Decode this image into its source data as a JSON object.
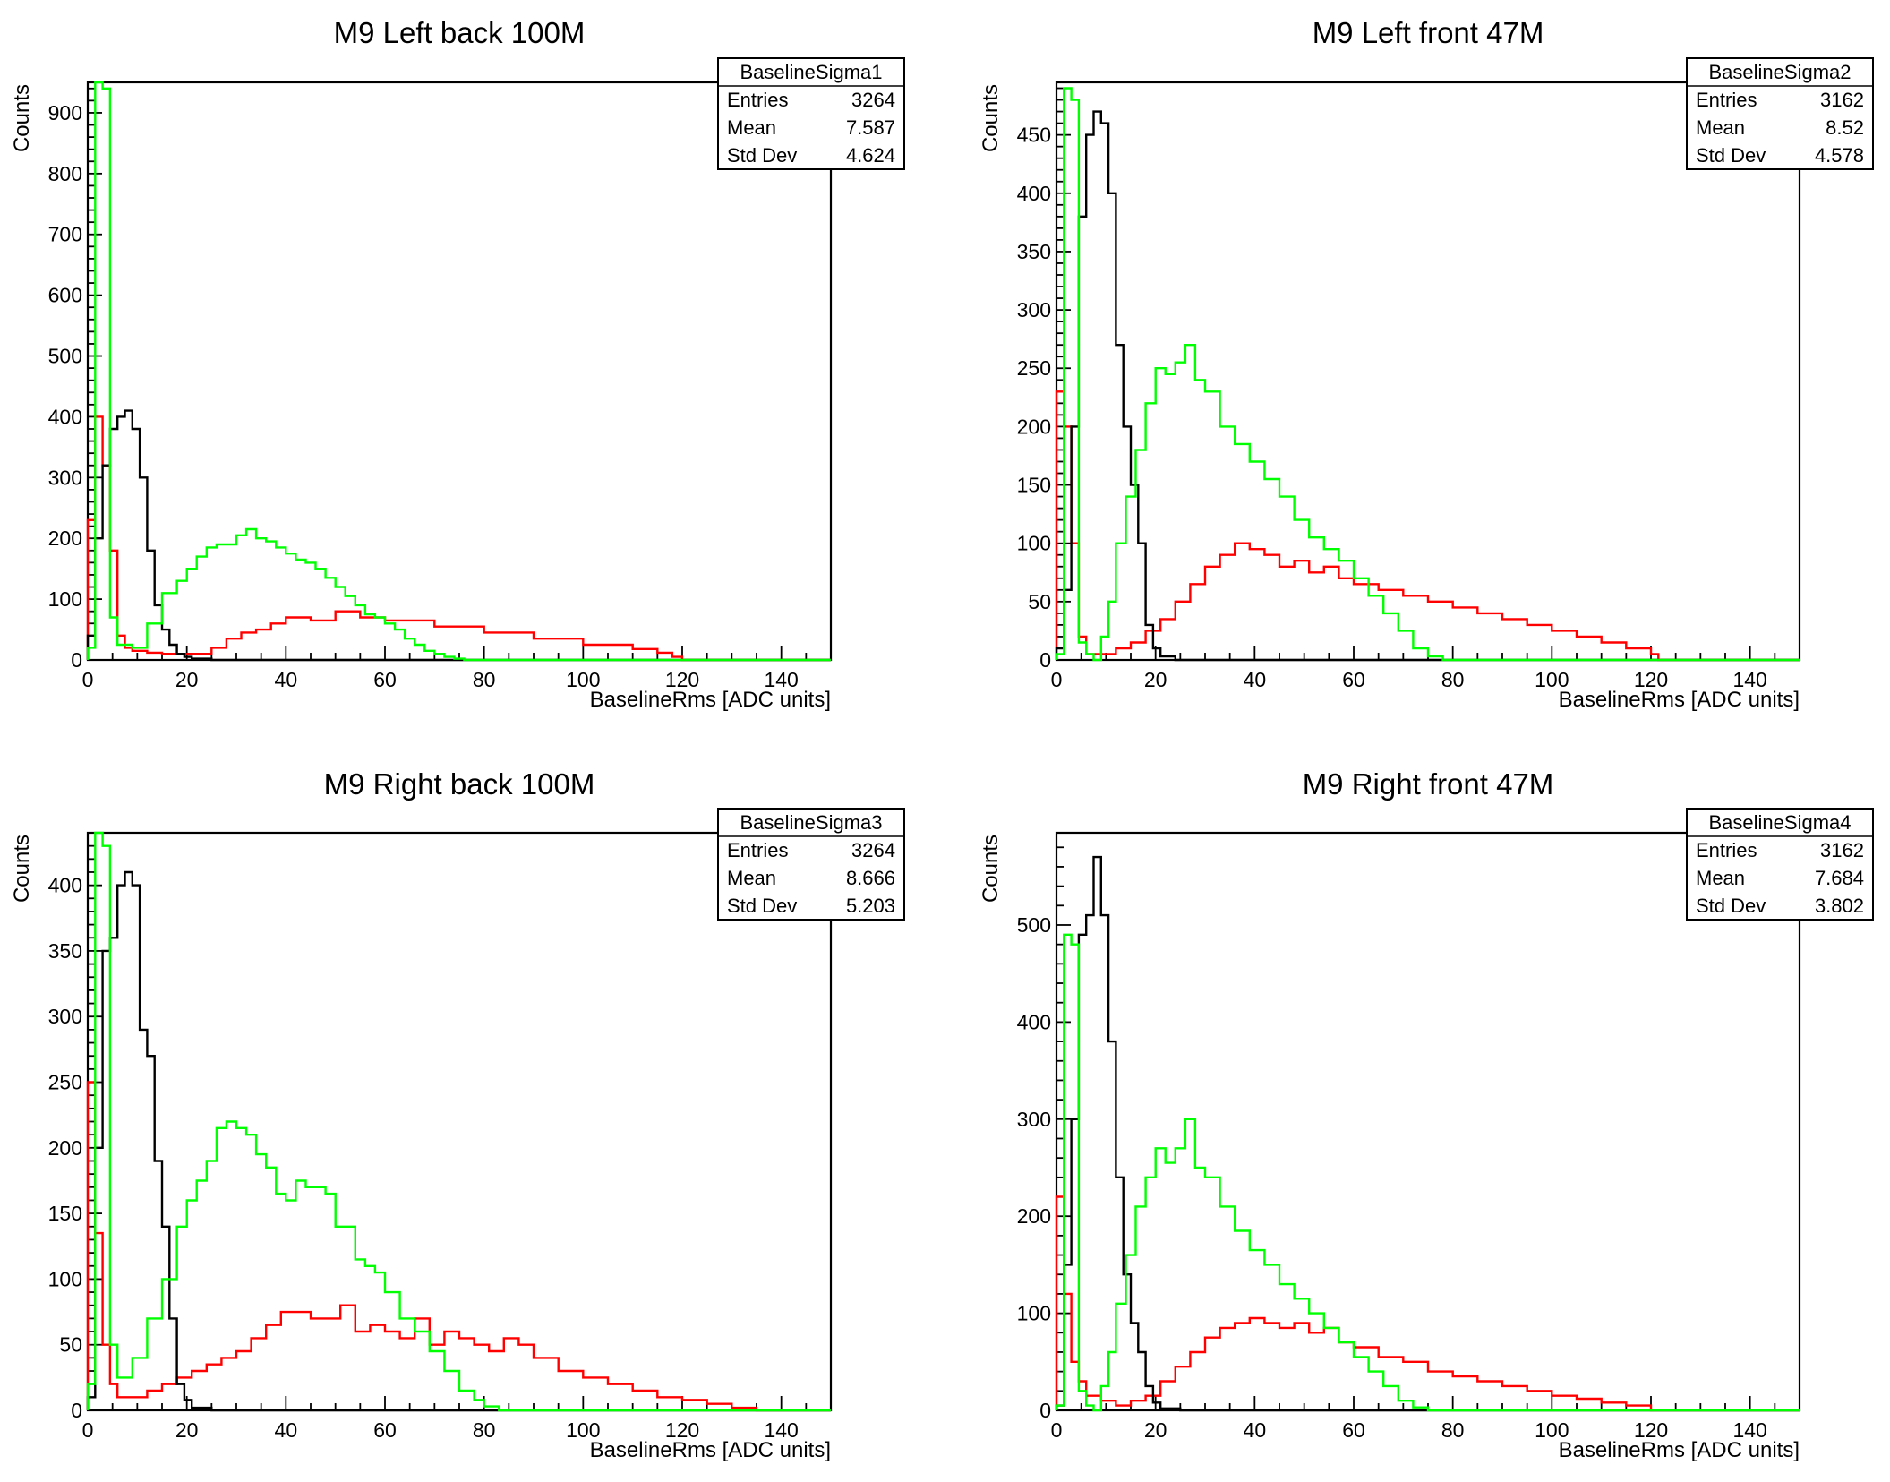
{
  "chart_data": [
    {
      "type": "histogram",
      "title": "M9 Left back 100M",
      "xlabel": "BaselineRms [ADC units]",
      "ylabel": "Counts",
      "xlim": [
        0,
        150
      ],
      "ylim": [
        0,
        950
      ],
      "xticks": [
        0,
        20,
        40,
        60,
        80,
        100,
        120,
        140
      ],
      "yticks": [
        0,
        100,
        200,
        300,
        400,
        500,
        600,
        700,
        800,
        900
      ],
      "bin_width": 1.5,
      "stats": {
        "name": "BaselineSigma1",
        "rows": [
          [
            "Entries",
            "3264"
          ],
          [
            "Mean",
            "7.587"
          ],
          [
            "Std Dev",
            "4.624"
          ]
        ]
      },
      "series": [
        {
          "color": "#ff0000",
          "x": [
            0,
            1.5,
            3,
            4.5,
            6,
            7.5,
            9,
            10.5,
            12,
            15,
            20,
            25,
            28,
            31,
            34,
            37,
            40,
            45,
            50,
            55,
            60,
            70,
            80,
            90,
            100,
            110,
            115,
            118,
            120
          ],
          "y": [
            230,
            400,
            320,
            180,
            40,
            20,
            15,
            15,
            12,
            10,
            10,
            20,
            35,
            45,
            50,
            60,
            70,
            65,
            80,
            70,
            65,
            55,
            45,
            35,
            25,
            18,
            12,
            5,
            0
          ]
        },
        {
          "color": "#000000",
          "x": [
            0,
            1.5,
            3,
            4.5,
            6,
            7.5,
            9,
            10.5,
            12,
            13.5,
            15,
            16.5,
            18,
            19.5,
            21,
            25,
            30
          ],
          "y": [
            40,
            200,
            320,
            380,
            400,
            410,
            380,
            300,
            180,
            90,
            50,
            25,
            10,
            5,
            2,
            0,
            0
          ]
        },
        {
          "color": "#00ff00",
          "x": [
            0,
            1.5,
            3,
            4.5,
            6,
            9,
            12,
            15,
            18,
            20,
            22,
            24,
            26,
            28,
            30,
            32,
            34,
            36,
            38,
            40,
            42,
            44,
            46,
            48,
            50,
            52,
            54,
            56,
            58,
            60,
            62,
            64,
            66,
            68,
            70,
            72,
            74,
            76
          ],
          "y": [
            20,
            950,
            940,
            70,
            25,
            20,
            60,
            110,
            130,
            150,
            170,
            185,
            190,
            190,
            205,
            215,
            200,
            195,
            185,
            175,
            165,
            160,
            150,
            135,
            120,
            105,
            90,
            75,
            70,
            60,
            50,
            35,
            25,
            15,
            10,
            5,
            2,
            0
          ]
        }
      ]
    },
    {
      "type": "histogram",
      "title": "M9 Left front 47M",
      "xlabel": "BaselineRms [ADC units]",
      "ylabel": "Counts",
      "xlim": [
        0,
        150
      ],
      "ylim": [
        0,
        495
      ],
      "xticks": [
        0,
        20,
        40,
        60,
        80,
        100,
        120,
        140
      ],
      "yticks": [
        0,
        50,
        100,
        150,
        200,
        250,
        300,
        350,
        400,
        450
      ],
      "bin_width": 1.5,
      "stats": {
        "name": "BaselineSigma2",
        "rows": [
          [
            "Entries",
            "3162"
          ],
          [
            "Mean",
            "8.52"
          ],
          [
            "Std Dev",
            "4.578"
          ]
        ]
      },
      "series": [
        {
          "color": "#ff0000",
          "x": [
            0,
            1.5,
            3,
            4.5,
            6,
            9,
            12,
            15,
            18,
            21,
            24,
            27,
            30,
            33,
            36,
            39,
            42,
            45,
            48,
            51,
            54,
            57,
            60,
            65,
            70,
            75,
            80,
            85,
            90,
            95,
            100,
            105,
            110,
            115,
            120
          ],
          "y": [
            230,
            200,
            100,
            20,
            5,
            5,
            10,
            15,
            25,
            35,
            50,
            65,
            80,
            90,
            100,
            95,
            90,
            80,
            85,
            75,
            80,
            70,
            65,
            60,
            55,
            50,
            45,
            40,
            35,
            30,
            25,
            20,
            15,
            10,
            5
          ]
        },
        {
          "color": "#000000",
          "x": [
            0,
            1.5,
            3,
            4.5,
            6,
            7.5,
            9,
            10.5,
            12,
            13.5,
            15,
            16.5,
            18,
            19.5,
            21,
            24
          ],
          "y": [
            10,
            60,
            200,
            380,
            450,
            470,
            460,
            400,
            270,
            200,
            150,
            100,
            30,
            10,
            3,
            0
          ]
        },
        {
          "color": "#00ff00",
          "x": [
            0,
            1.5,
            3,
            4.5,
            6,
            7.5,
            9,
            10.5,
            12,
            14,
            16,
            18,
            20,
            22,
            24,
            26,
            28,
            30,
            33,
            36,
            39,
            42,
            45,
            48,
            51,
            54,
            57,
            60,
            63,
            66,
            69,
            72,
            75,
            78
          ],
          "y": [
            5,
            490,
            480,
            15,
            5,
            0,
            20,
            50,
            100,
            140,
            180,
            220,
            250,
            245,
            255,
            270,
            240,
            230,
            200,
            185,
            170,
            155,
            140,
            120,
            105,
            95,
            85,
            70,
            55,
            40,
            25,
            10,
            3,
            0
          ]
        }
      ]
    },
    {
      "type": "histogram",
      "title": "M9 Right back 100M",
      "xlabel": "BaselineRms [ADC units]",
      "ylabel": "Counts",
      "xlim": [
        0,
        150
      ],
      "ylim": [
        0,
        440
      ],
      "xticks": [
        0,
        20,
        40,
        60,
        80,
        100,
        120,
        140
      ],
      "yticks": [
        0,
        50,
        100,
        150,
        200,
        250,
        300,
        350,
        400
      ],
      "bin_width": 1.5,
      "stats": {
        "name": "BaselineSigma3",
        "rows": [
          [
            "Entries",
            "3264"
          ],
          [
            "Mean",
            "8.666"
          ],
          [
            "Std Dev",
            "5.203"
          ]
        ]
      },
      "series": [
        {
          "color": "#ff0000",
          "x": [
            0,
            1.5,
            3,
            4.5,
            6,
            9,
            12,
            15,
            18,
            21,
            24,
            27,
            30,
            33,
            36,
            39,
            42,
            45,
            48,
            51,
            54,
            57,
            60,
            63,
            66,
            69,
            72,
            75,
            78,
            81,
            84,
            87,
            90,
            95,
            100,
            105,
            110,
            115,
            120,
            125,
            130,
            135
          ],
          "y": [
            250,
            135,
            50,
            20,
            10,
            10,
            15,
            20,
            25,
            30,
            35,
            40,
            45,
            55,
            65,
            75,
            75,
            70,
            70,
            80,
            60,
            65,
            60,
            55,
            70,
            50,
            60,
            55,
            50,
            45,
            55,
            50,
            40,
            30,
            25,
            20,
            15,
            10,
            8,
            5,
            2,
            0
          ]
        },
        {
          "color": "#000000",
          "x": [
            0,
            1.5,
            3,
            4.5,
            6,
            7.5,
            9,
            10.5,
            12,
            13.5,
            15,
            16.5,
            18,
            19.5,
            21,
            25
          ],
          "y": [
            10,
            200,
            350,
            360,
            400,
            410,
            400,
            290,
            270,
            190,
            140,
            70,
            20,
            8,
            2,
            0
          ]
        },
        {
          "color": "#00ff00",
          "x": [
            0,
            1.5,
            3,
            4.5,
            6,
            9,
            12,
            15,
            18,
            20,
            22,
            24,
            26,
            28,
            30,
            32,
            34,
            36,
            38,
            40,
            42,
            44,
            46,
            48,
            50,
            52,
            54,
            56,
            58,
            60,
            63,
            66,
            69,
            72,
            75,
            78,
            80,
            83
          ],
          "y": [
            20,
            440,
            430,
            50,
            25,
            40,
            70,
            100,
            140,
            160,
            175,
            190,
            215,
            220,
            215,
            210,
            195,
            185,
            165,
            160,
            175,
            170,
            170,
            165,
            140,
            140,
            115,
            110,
            105,
            90,
            70,
            60,
            45,
            30,
            15,
            8,
            3,
            0
          ]
        }
      ]
    },
    {
      "type": "histogram",
      "title": "M9 Right front 47M",
      "xlabel": "BaselineRms [ADC units]",
      "ylabel": "Counts",
      "xlim": [
        0,
        150
      ],
      "ylim": [
        0,
        595
      ],
      "xticks": [
        0,
        20,
        40,
        60,
        80,
        100,
        120,
        140
      ],
      "yticks": [
        0,
        100,
        200,
        300,
        400,
        500
      ],
      "bin_width": 1.5,
      "stats": {
        "name": "BaselineSigma4",
        "rows": [
          [
            "Entries",
            "3162"
          ],
          [
            "Mean",
            "7.684"
          ],
          [
            "Std Dev",
            "3.802"
          ]
        ]
      },
      "series": [
        {
          "color": "#ff0000",
          "x": [
            0,
            1.5,
            3,
            4.5,
            6,
            9,
            12,
            15,
            18,
            21,
            24,
            27,
            30,
            33,
            36,
            39,
            42,
            45,
            48,
            51,
            54,
            57,
            60,
            65,
            70,
            75,
            80,
            85,
            90,
            95,
            100,
            105,
            110,
            115,
            120
          ],
          "y": [
            220,
            120,
            50,
            30,
            15,
            10,
            5,
            10,
            15,
            30,
            45,
            60,
            75,
            85,
            90,
            95,
            90,
            85,
            90,
            80,
            85,
            70,
            65,
            55,
            50,
            40,
            35,
            30,
            25,
            20,
            15,
            12,
            8,
            5,
            0
          ]
        },
        {
          "color": "#000000",
          "x": [
            0,
            1.5,
            3,
            4.5,
            6,
            7.5,
            9,
            10.5,
            12,
            13.5,
            15,
            16.5,
            18,
            19.5,
            21,
            25
          ],
          "y": [
            5,
            150,
            300,
            490,
            510,
            570,
            510,
            380,
            240,
            140,
            90,
            60,
            25,
            8,
            2,
            0
          ]
        },
        {
          "color": "#00ff00",
          "x": [
            0,
            1.5,
            3,
            4.5,
            6,
            7.5,
            9,
            10.5,
            12,
            14,
            16,
            18,
            20,
            22,
            24,
            26,
            28,
            30,
            33,
            36,
            39,
            42,
            45,
            48,
            51,
            54,
            57,
            60,
            63,
            66,
            69,
            72,
            75
          ],
          "y": [
            5,
            490,
            480,
            20,
            5,
            0,
            25,
            60,
            110,
            160,
            210,
            240,
            270,
            255,
            270,
            300,
            250,
            240,
            210,
            185,
            165,
            150,
            130,
            115,
            100,
            85,
            70,
            55,
            40,
            25,
            10,
            3,
            0
          ]
        }
      ]
    }
  ]
}
